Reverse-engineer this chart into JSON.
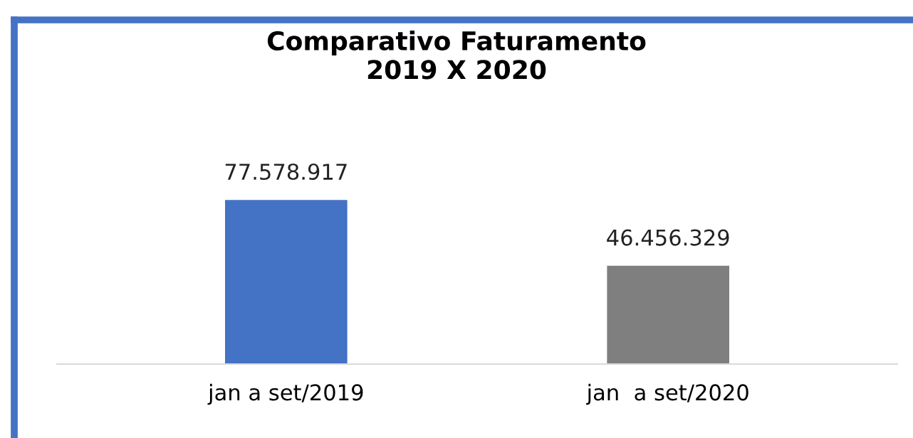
{
  "chart_data": {
    "type": "bar",
    "title": "Comparativo Faturamento\n2019 X 2020",
    "categories": [
      "jan a set/2019",
      "jan  a set/2020"
    ],
    "values": [
      77578917,
      46456329
    ],
    "colors": [
      "#4472c4",
      "#7f7f7f"
    ],
    "value_labels": [
      "77.578.917",
      "46.456.329"
    ],
    "grid": false,
    "legend": false
  }
}
